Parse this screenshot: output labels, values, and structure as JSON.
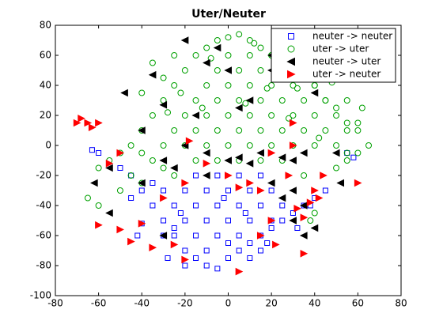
{
  "chart_data": {
    "type": "scatter",
    "title": "Uter/Neuter",
    "xlim": [
      -80,
      80
    ],
    "xticks": [
      -80,
      -60,
      -40,
      -20,
      0,
      20,
      40,
      60,
      80
    ],
    "ylim": [
      -100,
      80
    ],
    "yticks": [
      -100,
      -80,
      -60,
      -40,
      -20,
      0,
      20,
      40,
      60,
      80
    ],
    "legend": "upper right",
    "series": [
      {
        "name": "neuter -> neuter",
        "color": "#0000ff",
        "marker": "square",
        "filled": false,
        "x": [
          -50,
          -45,
          -40,
          -35,
          -30,
          -25,
          -20,
          -15,
          -10,
          -5,
          0,
          5,
          10,
          15,
          20,
          25,
          30,
          35,
          40,
          45,
          -30,
          -20,
          -10,
          0,
          10,
          20,
          -25,
          -15,
          -5,
          5,
          15,
          25,
          -30,
          -20,
          -10,
          0,
          10,
          20,
          -25,
          -15,
          -5,
          5,
          15,
          -10,
          0,
          -20,
          10,
          -35,
          -42,
          -40,
          -60,
          -63,
          55,
          58,
          -28,
          -5,
          5,
          -15,
          15,
          32,
          -45,
          38,
          -22,
          -2,
          8,
          18
        ],
        "y": [
          -15,
          -20,
          -30,
          -40,
          -50,
          -60,
          -70,
          -75,
          -80,
          -82,
          -75,
          -70,
          -65,
          -60,
          -55,
          -50,
          -45,
          -40,
          -35,
          -30,
          -30,
          -30,
          -30,
          -30,
          -30,
          -30,
          -40,
          -40,
          -40,
          -40,
          -40,
          -40,
          -60,
          -50,
          -50,
          -50,
          -50,
          -50,
          -55,
          -60,
          -60,
          -60,
          -70,
          -70,
          -65,
          -80,
          -75,
          -25,
          -60,
          -52,
          -5,
          -3,
          -5,
          -8,
          -75,
          -20,
          -20,
          -20,
          -20,
          -55,
          -35,
          -40,
          -45,
          -35,
          -45,
          -65
        ]
      },
      {
        "name": "uter -> uter",
        "color": "#00a000",
        "marker": "circle",
        "filled": false,
        "x": [
          -40,
          -35,
          -30,
          -25,
          -20,
          -15,
          -10,
          -5,
          0,
          5,
          10,
          15,
          20,
          25,
          30,
          35,
          40,
          45,
          50,
          55,
          60,
          65,
          60,
          55,
          50,
          -45,
          -40,
          -35,
          -30,
          -50,
          -55,
          -60,
          -45,
          -40,
          -30,
          -20,
          -10,
          0,
          10,
          20,
          30,
          40,
          50,
          -25,
          -15,
          -5,
          5,
          15,
          25,
          35,
          45,
          55,
          -20,
          -10,
          0,
          10,
          20,
          30,
          40,
          50,
          -15,
          -5,
          5,
          15,
          25,
          35,
          45,
          55,
          -10,
          0,
          10,
          20,
          30,
          40,
          -5,
          5,
          15,
          25,
          35,
          0,
          10,
          20,
          30,
          5,
          15,
          25,
          -5,
          -15,
          -25,
          35,
          40,
          38,
          -60,
          -65,
          -50,
          -40,
          -30,
          -35,
          -25,
          55,
          60,
          62,
          48,
          12,
          -8,
          22,
          28,
          -12,
          8,
          18,
          32,
          -22,
          -28,
          42
        ],
        "y": [
          10,
          20,
          30,
          40,
          50,
          60,
          65,
          70,
          72,
          74,
          70,
          65,
          60,
          55,
          50,
          45,
          40,
          30,
          25,
          15,
          10,
          0,
          -5,
          -10,
          -15,
          0,
          -5,
          -10,
          -15,
          -5,
          -10,
          -15,
          -20,
          -25,
          0,
          0,
          0,
          0,
          0,
          0,
          0,
          0,
          0,
          10,
          10,
          10,
          10,
          10,
          10,
          10,
          10,
          10,
          20,
          20,
          20,
          20,
          20,
          20,
          20,
          20,
          30,
          30,
          30,
          30,
          30,
          30,
          30,
          30,
          40,
          40,
          40,
          40,
          40,
          40,
          50,
          50,
          50,
          50,
          50,
          60,
          60,
          60,
          60,
          -10,
          -10,
          -10,
          -10,
          -10,
          -20,
          -20,
          -45,
          -50,
          -40,
          -35,
          -30,
          35,
          45,
          55,
          60,
          -5,
          15,
          25,
          42,
          68,
          58,
          48,
          18,
          25,
          28,
          38,
          38,
          35,
          22,
          5
        ]
      },
      {
        "name": "neuter -> uter",
        "color": "#000000",
        "marker": "triangle-left",
        "filled": true,
        "x": [
          -20,
          -5,
          -10,
          20,
          -35,
          -48,
          0,
          -30,
          5,
          -15,
          20,
          -40,
          -20,
          -10,
          -30,
          -25,
          0,
          5,
          10,
          15,
          25,
          30,
          35,
          -40,
          -55,
          -62,
          -55,
          20,
          30,
          25,
          35,
          30,
          40,
          35,
          -10,
          40,
          10,
          52,
          50,
          -30
        ],
        "y": [
          70,
          65,
          55,
          60,
          47,
          35,
          50,
          27,
          25,
          20,
          50,
          10,
          0,
          -5,
          -10,
          -15,
          -10,
          -8,
          -12,
          -5,
          -8,
          -10,
          -5,
          -25,
          -15,
          -25,
          -45,
          -25,
          -30,
          -35,
          -40,
          -50,
          -55,
          -60,
          -20,
          35,
          30,
          -25,
          -5,
          -60
        ]
      },
      {
        "name": "uter -> neuter",
        "color": "#ff0000",
        "marker": "triangle-right",
        "filled": true,
        "x": [
          -70,
          -68,
          -65,
          -60,
          -63,
          -50,
          -55,
          -20,
          -10,
          0,
          20,
          30,
          30,
          -18,
          -60,
          -50,
          -45,
          -40,
          -35,
          -25,
          -20,
          5,
          15,
          20,
          10,
          15,
          28,
          32,
          35,
          40,
          42,
          38,
          44,
          60,
          35,
          22,
          -30,
          5
        ],
        "y": [
          15,
          18,
          15,
          15,
          12,
          -5,
          -12,
          -25,
          -12,
          -20,
          -5,
          15,
          0,
          3,
          -53,
          -56,
          -64,
          -52,
          -68,
          -66,
          -76,
          -84,
          -60,
          -50,
          -25,
          -30,
          -20,
          -42,
          -48,
          -30,
          -35,
          -38,
          -20,
          -25,
          -72,
          -66,
          -35,
          -28
        ]
      }
    ]
  }
}
